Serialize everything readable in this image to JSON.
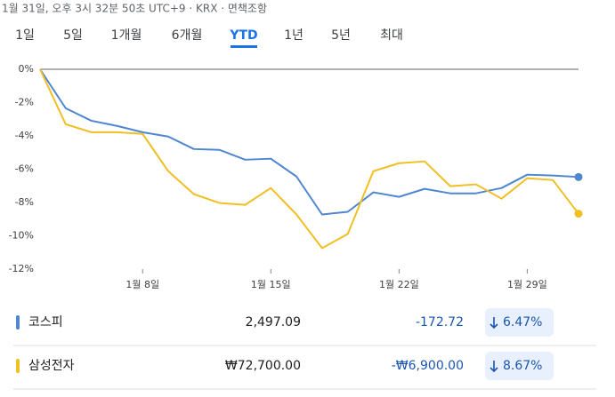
{
  "header": {
    "timestamp": "1월 31일, 오후 3시 32분 50초 UTC+9 · KRX · 면책조항",
    "tabs": [
      "1일",
      "5일",
      "1개월",
      "6개월",
      "YTD",
      "1년",
      "5년",
      "최대"
    ],
    "selected_tab": "YTD"
  },
  "chart_data": {
    "type": "line",
    "categories": [
      null,
      null,
      null,
      null,
      "1월 8일",
      null,
      null,
      null,
      null,
      "1월 15일",
      null,
      null,
      null,
      null,
      "1월 22일",
      null,
      null,
      null,
      null,
      "1월 29일",
      null,
      null
    ],
    "ylim": [
      -12,
      0
    ],
    "yticks": [
      {
        "value": 0,
        "label": "0%"
      },
      {
        "value": -2,
        "label": "-2%"
      },
      {
        "value": -4,
        "label": "-4%"
      },
      {
        "value": -6,
        "label": "-6%"
      },
      {
        "value": -8,
        "label": "-8%"
      },
      {
        "value": -10,
        "label": "-10%"
      },
      {
        "value": -12,
        "label": "-12%"
      }
    ],
    "grid": false,
    "series": [
      {
        "name": "코스피",
        "color": "#4e86cf",
        "price": "2,497.09",
        "change": "-172.72",
        "change_percent": "6.47%",
        "values": [
          0,
          -2.34,
          -3.09,
          -3.4,
          -3.78,
          -4.04,
          -4.79,
          -4.84,
          -5.43,
          -5.37,
          -6.44,
          -8.72,
          -8.56,
          -7.39,
          -7.66,
          -7.18,
          -7.45,
          -7.45,
          -7.13,
          -6.33,
          -6.38,
          -6.47
        ]
      },
      {
        "name": "삼성전자",
        "color": "#f0bf24",
        "price": "₩72,700.00",
        "change": "-₩6,900.00",
        "change_percent": "8.67%",
        "values": [
          0,
          -3.3,
          -3.78,
          -3.78,
          -3.88,
          -6.12,
          -7.5,
          -8.03,
          -8.14,
          -7.13,
          -8.72,
          -10.74,
          -9.89,
          -6.12,
          -5.64,
          -5.53,
          -7.02,
          -6.91,
          -7.77,
          -6.54,
          -6.65,
          -8.67
        ]
      }
    ]
  }
}
